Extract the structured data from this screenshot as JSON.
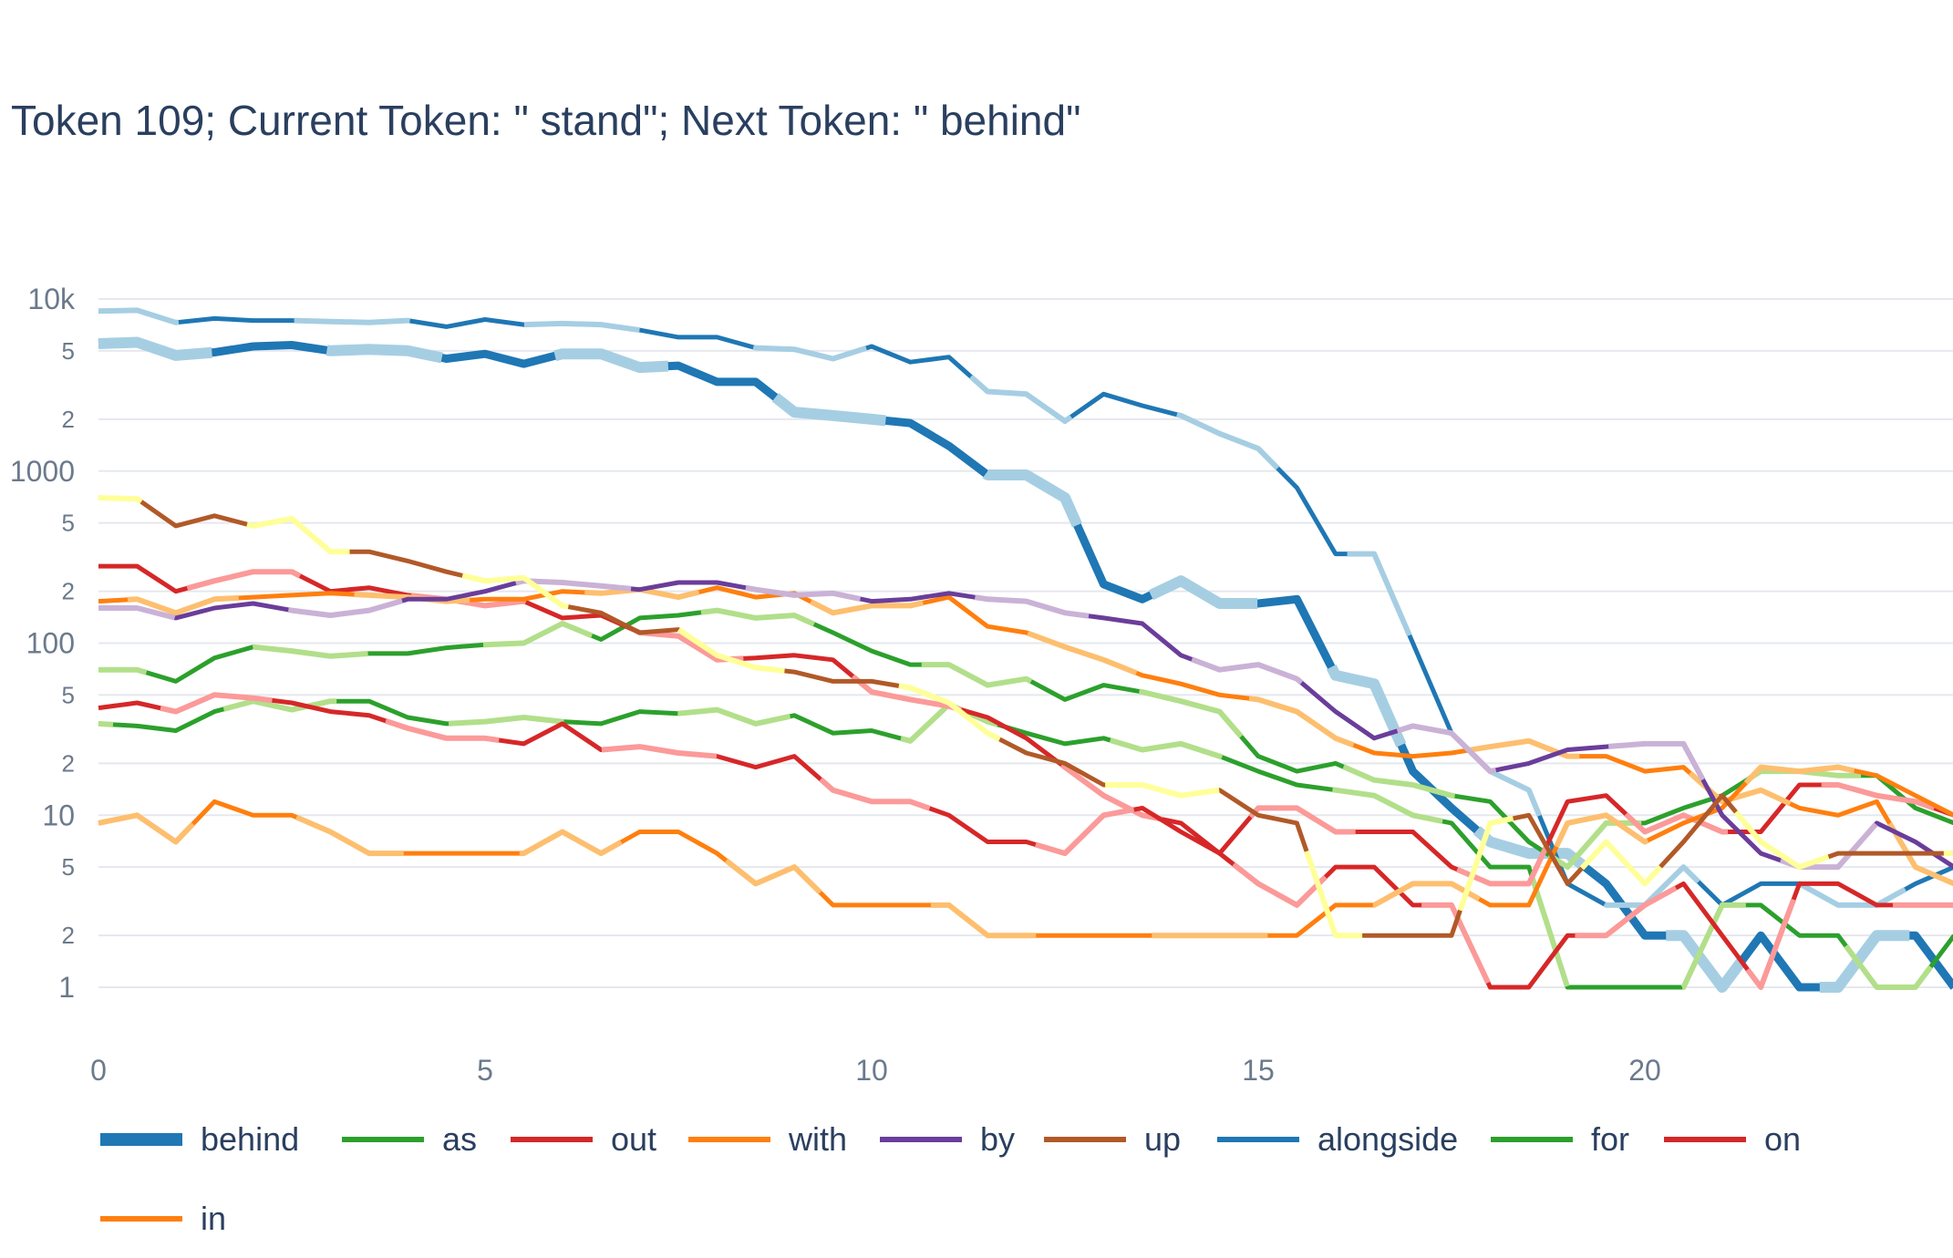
{
  "title": "Token 109; Current Token: \" stand\"; Next Token: \" behind\"",
  "chart_data": {
    "type": "line",
    "title": "Token 109; Current Token: \" stand\"; Next Token: \" behind\"",
    "xlabel": "",
    "ylabel": "",
    "y_scale": "log",
    "xlim": [
      0,
      24
    ],
    "ylim": [
      1,
      10000
    ],
    "grid": true,
    "legend_position": "bottom",
    "x_ticks": [
      0,
      5,
      10,
      15,
      20
    ],
    "y_major_ticks": [
      {
        "value": 1,
        "label": "1"
      },
      {
        "value": 10,
        "label": "10"
      },
      {
        "value": 100,
        "label": "100"
      },
      {
        "value": 1000,
        "label": "1000"
      },
      {
        "value": 10000,
        "label": "10k"
      }
    ],
    "y_minor_ticks": [
      {
        "value": 2,
        "label": "2"
      },
      {
        "value": 5,
        "label": "5"
      },
      {
        "value": 20,
        "label": "2"
      },
      {
        "value": 50,
        "label": "5"
      },
      {
        "value": 200,
        "label": "2"
      },
      {
        "value": 500,
        "label": "5"
      },
      {
        "value": 2000,
        "label": "2"
      },
      {
        "value": 5000,
        "label": "5"
      }
    ],
    "x": [
      0,
      0.5,
      1,
      1.5,
      2,
      2.5,
      3,
      3.5,
      4,
      4.5,
      5,
      5.5,
      6,
      6.5,
      7,
      7.5,
      8,
      8.5,
      9,
      9.5,
      10,
      10.5,
      11,
      11.5,
      12,
      12.5,
      13,
      13.5,
      14,
      14.5,
      15,
      15.5,
      16,
      16.5,
      17,
      17.5,
      18,
      18.5,
      19,
      19.5,
      20,
      20.5,
      21,
      21.5,
      22,
      22.5,
      23,
      23.5,
      24
    ],
    "series": [
      {
        "name": "behind",
        "color": "#1f77b4",
        "halo": "#a6cee3",
        "width": 9,
        "values": [
          5500,
          5600,
          4700,
          4900,
          5300,
          5400,
          5000,
          5100,
          5000,
          4500,
          4800,
          4200,
          4800,
          4800,
          4000,
          4100,
          3300,
          3300,
          2200,
          2100,
          2000,
          1900,
          1400,
          950,
          950,
          700,
          220,
          180,
          230,
          170,
          170,
          180,
          65,
          58,
          18,
          11,
          7,
          6,
          6,
          4,
          2,
          2,
          1,
          2,
          1,
          1,
          2,
          2,
          1
        ]
      },
      {
        "name": "alongside",
        "color": "#1f77b4",
        "halo": "#a6cee3",
        "width": 5,
        "values": [
          8500,
          8600,
          7300,
          7700,
          7500,
          7500,
          7400,
          7300,
          7500,
          6900,
          7600,
          7100,
          7200,
          7100,
          6600,
          6000,
          6000,
          5200,
          5100,
          4500,
          5300,
          4300,
          4600,
          2900,
          2800,
          1950,
          2800,
          2400,
          2100,
          1650,
          1350,
          800,
          330,
          330,
          100,
          30,
          18,
          14,
          4,
          3,
          3,
          5,
          3,
          4,
          4,
          3,
          3,
          4,
          5
        ]
      },
      {
        "name": "as",
        "color": "#2ca02c",
        "halo": "#b2df8a",
        "width": 5,
        "values": [
          70,
          70,
          60,
          82,
          95,
          90,
          84,
          87,
          87,
          94,
          98,
          100,
          130,
          105,
          140,
          145,
          155,
          140,
          145,
          115,
          90,
          75,
          75,
          57,
          62,
          47,
          57,
          52,
          46,
          40,
          22,
          18,
          20,
          16,
          15,
          13,
          12,
          7,
          5,
          9,
          9,
          11,
          13,
          18,
          18,
          17,
          17,
          11,
          9
        ]
      },
      {
        "name": "for",
        "color": "#2ca02c",
        "halo": "#b2df8a",
        "width": 5,
        "values": [
          34,
          33,
          31,
          40,
          46,
          41,
          46,
          46,
          37,
          34,
          35,
          37,
          35,
          34,
          40,
          39,
          41,
          34,
          38,
          30,
          31,
          27,
          44,
          35,
          30,
          26,
          28,
          24,
          26,
          22,
          18,
          15,
          14,
          13,
          10,
          9,
          5,
          5,
          1,
          1,
          1,
          1,
          3,
          3,
          2,
          2,
          1,
          1,
          2
        ]
      },
      {
        "name": "out",
        "color": "#d62728",
        "halo": "#fb9a99",
        "width": 5,
        "values": [
          280,
          280,
          200,
          230,
          260,
          260,
          200,
          210,
          190,
          180,
          165,
          175,
          140,
          145,
          115,
          110,
          80,
          82,
          85,
          80,
          52,
          47,
          43,
          37,
          28,
          19,
          13,
          10,
          9,
          6,
          11,
          11,
          8,
          8,
          8,
          5,
          4,
          4,
          12,
          13,
          8,
          10,
          8,
          8,
          15,
          15,
          13,
          12,
          10
        ]
      },
      {
        "name": "on",
        "color": "#d62728",
        "halo": "#fb9a99",
        "width": 5,
        "values": [
          42,
          45,
          40,
          50,
          48,
          45,
          40,
          38,
          32,
          28,
          28,
          26,
          34,
          24,
          25,
          23,
          22,
          19,
          22,
          14,
          12,
          12,
          10,
          7,
          7,
          6,
          10,
          11,
          8,
          6,
          4,
          3,
          5,
          5,
          3,
          3,
          1,
          1,
          2,
          2,
          3,
          4,
          2,
          1,
          4,
          4,
          3,
          3,
          3
        ]
      },
      {
        "name": "with",
        "color": "#ff7f0e",
        "halo": "#fdbf6f",
        "width": 5,
        "values": [
          175,
          180,
          150,
          180,
          185,
          190,
          195,
          190,
          185,
          175,
          180,
          180,
          200,
          195,
          205,
          185,
          210,
          185,
          195,
          150,
          165,
          165,
          185,
          125,
          115,
          95,
          80,
          65,
          58,
          50,
          47,
          40,
          28,
          23,
          22,
          23,
          25,
          27,
          22,
          22,
          18,
          19,
          12,
          14,
          11,
          10,
          12,
          5,
          4
        ]
      },
      {
        "name": "in",
        "color": "#ff7f0e",
        "halo": "#fdbf6f",
        "width": 5,
        "values": [
          9,
          10,
          7,
          12,
          10,
          10,
          8,
          6,
          6,
          6,
          6,
          6,
          8,
          6,
          8,
          8,
          6,
          4,
          5,
          3,
          3,
          3,
          3,
          2,
          2,
          2,
          2,
          2,
          2,
          2,
          2,
          2,
          3,
          3,
          4,
          4,
          3,
          3,
          9,
          10,
          7,
          9,
          11,
          19,
          18,
          19,
          17,
          13,
          10
        ]
      },
      {
        "name": "by",
        "color": "#6a3d9a",
        "halo": "#cab2d6",
        "width": 5,
        "values": [
          160,
          160,
          140,
          160,
          170,
          155,
          145,
          155,
          180,
          180,
          200,
          230,
          225,
          215,
          205,
          225,
          225,
          205,
          190,
          195,
          175,
          180,
          195,
          180,
          175,
          150,
          140,
          130,
          85,
          70,
          75,
          62,
          40,
          28,
          33,
          30,
          18,
          20,
          24,
          25,
          26,
          26,
          10,
          6,
          5,
          5,
          9,
          7,
          5
        ]
      },
      {
        "name": "up",
        "color": "#b15928",
        "halo": "#ffff99",
        "width": 5,
        "values": [
          700,
          690,
          480,
          550,
          480,
          530,
          340,
          340,
          300,
          260,
          230,
          240,
          165,
          150,
          115,
          120,
          85,
          72,
          68,
          60,
          60,
          55,
          45,
          30,
          23,
          20,
          15,
          15,
          13,
          14,
          10,
          9,
          2,
          2,
          2,
          2,
          9,
          10,
          4,
          7,
          4,
          7,
          13,
          7,
          5,
          6,
          6,
          6,
          6
        ]
      }
    ]
  }
}
